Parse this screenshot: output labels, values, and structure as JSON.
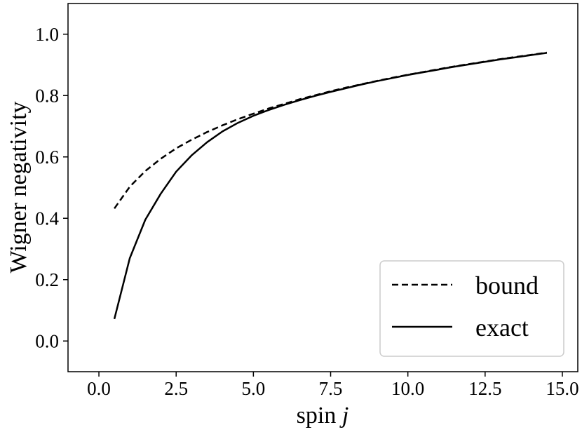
{
  "chart_data": {
    "type": "line",
    "title": "",
    "xlabel": "spin",
    "xlabel_var": "j",
    "ylabel": "Wigner negativity",
    "xlim": [
      -1.0,
      15.5
    ],
    "ylim": [
      -0.1,
      1.1
    ],
    "xticks": [
      "0.0",
      "2.5",
      "5.0",
      "7.5",
      "10.0",
      "12.5",
      "15.0"
    ],
    "xtick_values": [
      0,
      2.5,
      5,
      7.5,
      10,
      12.5,
      15
    ],
    "yticks": [
      "0.0",
      "0.2",
      "0.4",
      "0.6",
      "0.8",
      "1.0"
    ],
    "ytick_values": [
      0,
      0.2,
      0.4,
      0.6,
      0.8,
      1.0
    ],
    "grid": false,
    "legend_position": "lower-right",
    "series": [
      {
        "name": "bound",
        "style": "dashed",
        "color": "#000000",
        "x": [
          0.5,
          1,
          1.5,
          2,
          2.5,
          3,
          3.5,
          4,
          4.5,
          5,
          5.5,
          6,
          6.5,
          7,
          7.5,
          8,
          8.5,
          9,
          9.5,
          10,
          10.5,
          11,
          11.5,
          12,
          12.5,
          13,
          13.5,
          14,
          14.5
        ],
        "y": [
          0.432,
          0.503,
          0.554,
          0.594,
          0.628,
          0.656,
          0.681,
          0.703,
          0.723,
          0.741,
          0.758,
          0.773,
          0.788,
          0.801,
          0.814,
          0.826,
          0.837,
          0.848,
          0.858,
          0.868,
          0.877,
          0.886,
          0.895,
          0.903,
          0.911,
          0.919,
          0.926,
          0.933,
          0.94
        ]
      },
      {
        "name": "exact",
        "style": "solid",
        "color": "#000000",
        "x": [
          0.5,
          1,
          1.5,
          2,
          2.5,
          3,
          3.5,
          4,
          4.5,
          5,
          5.5,
          6,
          6.5,
          7,
          7.5,
          8,
          8.5,
          9,
          9.5,
          10,
          10.5,
          11,
          11.5,
          12,
          12.5,
          13,
          13.5,
          14,
          14.5
        ],
        "y": [
          0.072,
          0.27,
          0.395,
          0.48,
          0.552,
          0.605,
          0.648,
          0.683,
          0.711,
          0.734,
          0.753,
          0.77,
          0.785,
          0.799,
          0.812,
          0.824,
          0.836,
          0.847,
          0.857,
          0.867,
          0.876,
          0.885,
          0.894,
          0.902,
          0.91,
          0.918,
          0.925,
          0.932,
          0.939
        ]
      }
    ]
  }
}
